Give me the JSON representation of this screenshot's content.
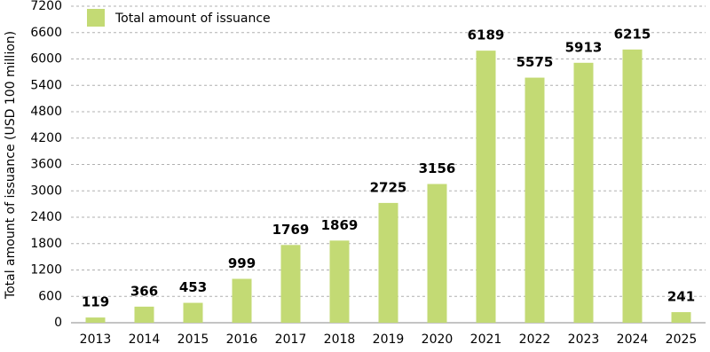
{
  "chart_data": {
    "type": "bar",
    "y_label": "Total amount of issuance (USD 100 million)",
    "categories": [
      "2013",
      "2014",
      "2015",
      "2016",
      "2017",
      "2018",
      "2019",
      "2020",
      "2021",
      "2022",
      "2023",
      "2024",
      "2025"
    ],
    "series": [
      {
        "name": "Total amount of issuance",
        "color": "#c3da74",
        "values": [
          119,
          366,
          453,
          999,
          1769,
          1869,
          2725,
          3156,
          6189,
          5575,
          5913,
          6215,
          241
        ]
      }
    ],
    "ylim": [
      0,
      7200
    ],
    "yticks": [
      0,
      600,
      1200,
      1800,
      2400,
      3000,
      3600,
      4200,
      4800,
      5400,
      6000,
      6600,
      7200
    ],
    "grid": true
  }
}
